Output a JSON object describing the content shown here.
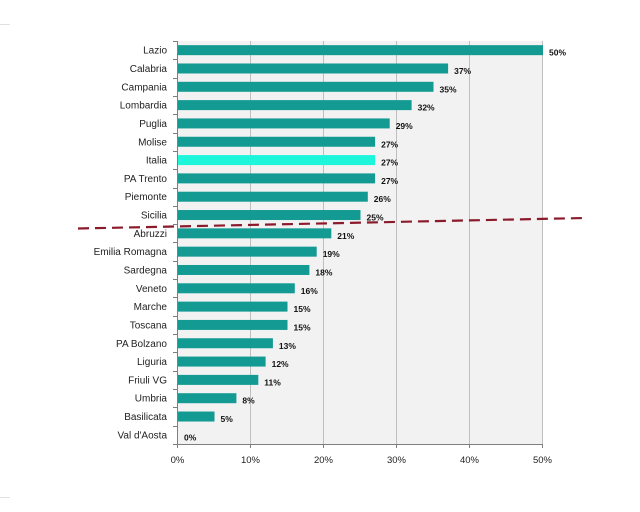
{
  "chart_data": {
    "type": "bar",
    "orientation": "horizontal",
    "title": "",
    "xlabel": "",
    "ylabel": "",
    "xlim": [
      0,
      50
    ],
    "x_ticks": [
      "0%",
      "10%",
      "20%",
      "30%",
      "40%",
      "50%"
    ],
    "grid": true,
    "categories": [
      "Lazio",
      "Calabria",
      "Campania",
      "Lombardia",
      "Puglia",
      "Molise",
      "Italia",
      "PA Trento",
      "Piemonte",
      "Sicilia",
      "Abruzzi",
      "Emilia Romagna",
      "Sardegna",
      "Veneto",
      "Marche",
      "Toscana",
      "PA Bolzano",
      "Liguria",
      "Friuli VG",
      "Umbria",
      "Basilicata",
      "Val d'Aosta"
    ],
    "values": [
      50,
      37,
      35,
      32,
      29,
      27,
      27,
      27,
      26,
      25,
      21,
      19,
      18,
      16,
      15,
      15,
      13,
      12,
      11,
      8,
      5,
      0
    ],
    "value_labels": [
      "50%",
      "37%",
      "35%",
      "32%",
      "29%",
      "27%",
      "27%",
      "27%",
      "26%",
      "25%",
      "21%",
      "19%",
      "18%",
      "16%",
      "15%",
      "15%",
      "13%",
      "12%",
      "11%",
      "8%",
      "5%",
      "0%"
    ],
    "highlight_category": "Italia",
    "threshold_line": {
      "between": [
        "Sicilia",
        "Abruzzi"
      ],
      "style": "dashed",
      "color": "#8b1a2b"
    }
  },
  "colors": {
    "bar": "#139a93",
    "highlight": "#1ef6dc",
    "plot_background": "#f2f2f2",
    "gridline": "#bfbfbf",
    "axis": "#7f7f7f"
  }
}
